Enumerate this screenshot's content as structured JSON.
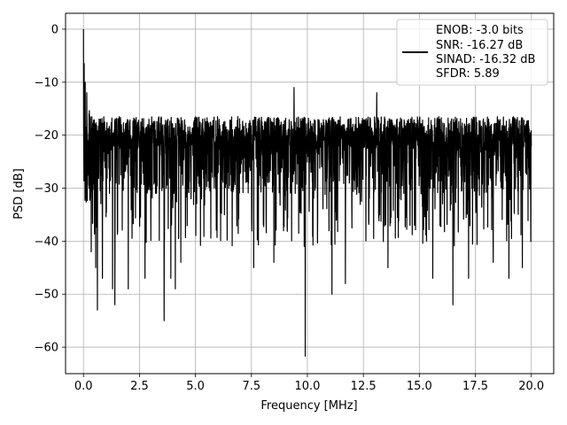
{
  "chart_data": {
    "type": "line",
    "title": "",
    "xlabel": "Frequency [MHz]",
    "ylabel": "PSD [dB]",
    "xlim": [
      -0.8,
      21.0
    ],
    "ylim": [
      -65,
      3
    ],
    "xticks": [
      0.0,
      2.5,
      5.0,
      7.5,
      10.0,
      12.5,
      15.0,
      17.5,
      20.0
    ],
    "xtick_labels": [
      "0.0",
      "2.5",
      "5.0",
      "7.5",
      "10.0",
      "12.5",
      "15.0",
      "17.5",
      "20.0"
    ],
    "yticks": [
      0,
      -10,
      -20,
      -30,
      -40,
      -50,
      -60
    ],
    "ytick_labels": [
      "0",
      "−10",
      "−20",
      "−30",
      "−40",
      "−50",
      "−60"
    ],
    "grid": true,
    "legend_position": "top-right",
    "legend_lines": [
      "ENOB: -3.0 bits",
      "SNR: -16.27 dB",
      "SINAD: -16.32 dB",
      "SFDR: 5.89"
    ],
    "series_color": "#000000",
    "noise_band": {
      "upper_db": -16.5,
      "lower_db": -31,
      "min_db": -62
    },
    "peaks": [
      {
        "x": 0.0,
        "y": 0.0
      },
      {
        "x": 0.03,
        "y": -6.5
      },
      {
        "x": 0.05,
        "y": -21
      },
      {
        "x": 0.08,
        "y": -10
      },
      {
        "x": 0.15,
        "y": -12
      },
      {
        "x": 0.25,
        "y": -16
      },
      {
        "x": 0.35,
        "y": -42
      },
      {
        "x": 0.55,
        "y": -45
      },
      {
        "x": 0.62,
        "y": -53
      },
      {
        "x": 0.85,
        "y": -47
      },
      {
        "x": 1.3,
        "y": -49
      },
      {
        "x": 1.4,
        "y": -52
      },
      {
        "x": 2.0,
        "y": -49
      },
      {
        "x": 2.75,
        "y": -47
      },
      {
        "x": 3.6,
        "y": -55
      },
      {
        "x": 3.9,
        "y": -47
      },
      {
        "x": 4.1,
        "y": -49
      },
      {
        "x": 4.35,
        "y": -44
      },
      {
        "x": 7.6,
        "y": -45
      },
      {
        "x": 8.5,
        "y": -44
      },
      {
        "x": 9.4,
        "y": -11
      },
      {
        "x": 9.9,
        "y": -61.7
      },
      {
        "x": 11.1,
        "y": -50
      },
      {
        "x": 11.7,
        "y": -48
      },
      {
        "x": 13.6,
        "y": -45
      },
      {
        "x": 13.1,
        "y": -12
      },
      {
        "x": 15.6,
        "y": -47
      },
      {
        "x": 16.5,
        "y": -52
      },
      {
        "x": 17.2,
        "y": -47
      },
      {
        "x": 18.3,
        "y": -44
      },
      {
        "x": 19.0,
        "y": -47
      },
      {
        "x": 19.6,
        "y": -45
      }
    ]
  }
}
